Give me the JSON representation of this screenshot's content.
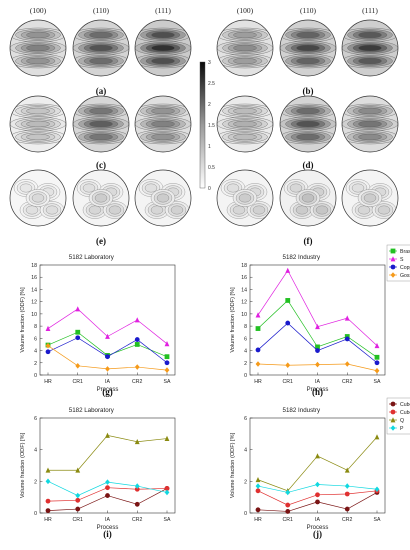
{
  "pole_figures": {
    "plane_labels": [
      "(100)",
      "(110)",
      "(111)"
    ],
    "panel_labels": [
      "(a)",
      "(b)",
      "(c)",
      "(d)",
      "(e)",
      "(f)"
    ],
    "colorbar_ticks": [
      "0",
      "0.5",
      "1",
      "1.5",
      "2",
      "2.5",
      "3"
    ],
    "shading": [
      [
        0.55,
        0.75,
        0.9
      ],
      [
        0.5,
        0.8,
        0.85
      ],
      [
        0.3,
        0.7,
        0.55
      ],
      [
        0.35,
        0.75,
        0.6
      ],
      [
        0.15,
        0.2,
        0.2
      ],
      [
        0.2,
        0.25,
        0.2
      ]
    ]
  },
  "chart_data": [
    {
      "panel": "(g)",
      "type": "line",
      "title": "5182 Laboratory",
      "xlabel": "Process",
      "ylabel": "Volume fraction (ODF) [%]",
      "categories": [
        "HR",
        "CR1",
        "IA",
        "CR2",
        "SA"
      ],
      "ylim": [
        0,
        18
      ],
      "yticks": [
        0,
        2,
        4,
        6,
        8,
        10,
        12,
        14,
        16,
        18
      ],
      "series": [
        {
          "name": "Brass",
          "color": "#22c022",
          "marker": "square",
          "values": [
            4.9,
            7.0,
            3.2,
            5.0,
            3.0
          ]
        },
        {
          "name": "S",
          "color": "#e020e0",
          "marker": "triangle",
          "values": [
            7.6,
            10.8,
            6.3,
            9.0,
            5.1
          ]
        },
        {
          "name": "Copper",
          "color": "#1a1acc",
          "marker": "circle",
          "values": [
            3.8,
            6.1,
            3.0,
            5.8,
            2.0
          ]
        },
        {
          "name": "Goss",
          "color": "#f59a1a",
          "marker": "diamond",
          "values": [
            4.8,
            1.5,
            1.0,
            1.3,
            0.8
          ]
        }
      ]
    },
    {
      "panel": "(h)",
      "type": "line",
      "title": "5182 Industry",
      "xlabel": "Process",
      "ylabel": "Volume fraction (ODF) [%]",
      "categories": [
        "HR",
        "CR1",
        "IA",
        "CR2",
        "SA"
      ],
      "ylim": [
        0,
        18
      ],
      "yticks": [
        0,
        2,
        4,
        6,
        8,
        10,
        12,
        14,
        16,
        18
      ],
      "legend": "top-right",
      "series": [
        {
          "name": "Brass",
          "color": "#22c022",
          "marker": "square",
          "values": [
            7.6,
            12.2,
            4.6,
            6.3,
            2.9
          ]
        },
        {
          "name": "S",
          "color": "#e020e0",
          "marker": "triangle",
          "values": [
            9.8,
            17.1,
            7.9,
            9.3,
            4.8
          ]
        },
        {
          "name": "Copper",
          "color": "#1a1acc",
          "marker": "circle",
          "values": [
            4.1,
            8.5,
            4.0,
            5.9,
            2.0
          ]
        },
        {
          "name": "Goss",
          "color": "#f59a1a",
          "marker": "diamond",
          "values": [
            1.8,
            1.6,
            1.7,
            1.8,
            0.7
          ]
        }
      ]
    },
    {
      "panel": "(i)",
      "type": "line",
      "title": "5182 Laboratory",
      "xlabel": "Process",
      "ylabel": "Volume fraction (ODF) [%]",
      "categories": [
        "HR",
        "CR1",
        "IA",
        "CR2",
        "SA"
      ],
      "ylim": [
        0,
        6
      ],
      "yticks": [
        0,
        2,
        4,
        6
      ],
      "series": [
        {
          "name": "CubeND",
          "color": "#7a1414",
          "marker": "circle",
          "values": [
            0.15,
            0.25,
            1.1,
            0.55,
            1.55
          ]
        },
        {
          "name": "Cube",
          "color": "#e03030",
          "marker": "circle",
          "values": [
            0.75,
            0.8,
            1.6,
            1.5,
            1.55
          ]
        },
        {
          "name": "Q",
          "color": "#8a8a10",
          "marker": "triangle",
          "values": [
            2.7,
            2.7,
            4.9,
            4.5,
            4.7
          ]
        },
        {
          "name": "P",
          "color": "#10d8e0",
          "marker": "diamond",
          "values": [
            2.0,
            1.1,
            1.95,
            1.7,
            1.3
          ]
        }
      ]
    },
    {
      "panel": "(j)",
      "type": "line",
      "title": "5182 Industry",
      "xlabel": "Process",
      "ylabel": "Volume fraction (ODF) [%]",
      "categories": [
        "HR",
        "CR1",
        "IA",
        "CR2",
        "SA"
      ],
      "ylim": [
        0,
        6
      ],
      "yticks": [
        0,
        2,
        4,
        6
      ],
      "legend": "top-right",
      "series": [
        {
          "name": "CubeND",
          "color": "#7a1414",
          "marker": "circle",
          "values": [
            0.2,
            0.1,
            0.7,
            0.25,
            1.3
          ]
        },
        {
          "name": "Cube",
          "color": "#e03030",
          "marker": "circle",
          "values": [
            1.4,
            0.5,
            1.15,
            1.2,
            1.4
          ]
        },
        {
          "name": "Q",
          "color": "#8a8a10",
          "marker": "triangle",
          "values": [
            2.1,
            1.4,
            3.6,
            2.7,
            4.8
          ]
        },
        {
          "name": "P",
          "color": "#10d8e0",
          "marker": "diamond",
          "values": [
            1.7,
            1.3,
            1.8,
            1.7,
            1.5
          ]
        }
      ]
    }
  ]
}
